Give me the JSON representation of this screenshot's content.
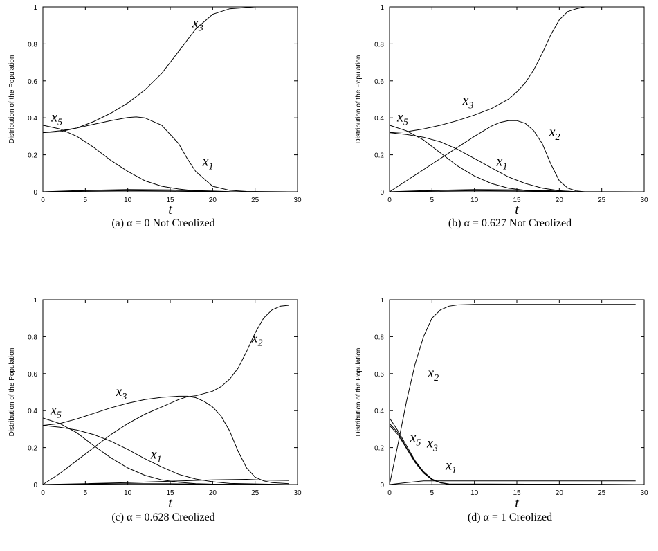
{
  "y_axis_label": "Distribution of the Population",
  "x_axis_label": "t",
  "x_ticks": [
    "0",
    "5",
    "10",
    "15",
    "20",
    "25",
    "30"
  ],
  "y_ticks": [
    "0",
    "0.2",
    "0.4",
    "0.6",
    "0.8",
    "1"
  ],
  "chart_data": [
    {
      "type": "line",
      "caption": "(a) α = 0 Not Creolized",
      "xlim": [
        0,
        30
      ],
      "ylim": [
        0,
        1
      ],
      "xlabel": "t",
      "ylabel": "Distribution of the Population",
      "grid": false,
      "series": [
        {
          "name": "x3",
          "x": [
            0,
            2,
            4,
            6,
            8,
            10,
            12,
            14,
            16,
            18,
            20,
            22,
            25,
            29
          ],
          "values": [
            0.32,
            0.325,
            0.345,
            0.38,
            0.425,
            0.48,
            0.55,
            0.64,
            0.76,
            0.88,
            0.96,
            0.99,
            1.0,
            1.0
          ]
        },
        {
          "name": "x5",
          "x": [
            0,
            2,
            4,
            6,
            8,
            10,
            12,
            14,
            16,
            18,
            20,
            22,
            29
          ],
          "values": [
            0.36,
            0.34,
            0.3,
            0.24,
            0.17,
            0.11,
            0.06,
            0.03,
            0.015,
            0.005,
            0.002,
            0.0,
            0.0
          ]
        },
        {
          "name": "x1",
          "x": [
            0,
            2,
            4,
            6,
            8,
            10,
            11,
            12,
            14,
            16,
            17,
            18,
            20,
            22,
            24,
            29
          ],
          "values": [
            0.32,
            0.33,
            0.345,
            0.365,
            0.385,
            0.402,
            0.405,
            0.4,
            0.36,
            0.26,
            0.18,
            0.11,
            0.03,
            0.008,
            0.002,
            0.0
          ]
        },
        {
          "name": "",
          "x": [
            0,
            5,
            10,
            15,
            20,
            22,
            29
          ],
          "values": [
            0.0,
            0.008,
            0.012,
            0.01,
            0.004,
            0.001,
            0.0
          ]
        },
        {
          "name": "",
          "x": [
            0,
            5,
            10,
            15,
            20,
            22,
            29
          ],
          "values": [
            0.0,
            0.004,
            0.006,
            0.005,
            0.002,
            0.0,
            0.0
          ]
        }
      ],
      "labels": [
        {
          "text": "x",
          "sub": "3",
          "x": 17.6,
          "y": 0.89
        },
        {
          "text": "x",
          "sub": "5",
          "x": 1.0,
          "y": 0.38
        },
        {
          "text": "x",
          "sub": "1",
          "x": 18.8,
          "y": 0.14
        }
      ]
    },
    {
      "type": "line",
      "caption": "(b) α = 0.627 Not Creolized",
      "xlim": [
        0,
        30
      ],
      "ylim": [
        0,
        1
      ],
      "xlabel": "t",
      "ylabel": "Distribution of the Population",
      "grid": false,
      "series": [
        {
          "name": "x3",
          "x": [
            0,
            2,
            4,
            6,
            8,
            10,
            12,
            14,
            15,
            16,
            17,
            18,
            19,
            20,
            21,
            22,
            23,
            25,
            29
          ],
          "values": [
            0.32,
            0.325,
            0.34,
            0.36,
            0.385,
            0.415,
            0.45,
            0.5,
            0.54,
            0.59,
            0.66,
            0.75,
            0.85,
            0.93,
            0.975,
            0.99,
            1.0,
            1.0,
            1.0
          ]
        },
        {
          "name": "x2",
          "x": [
            0,
            2,
            4,
            6,
            8,
            10,
            12,
            13,
            14,
            15,
            16,
            17,
            18,
            19,
            20,
            21,
            22,
            23,
            25,
            29
          ],
          "values": [
            0.0,
            0.06,
            0.12,
            0.18,
            0.24,
            0.3,
            0.355,
            0.375,
            0.385,
            0.385,
            0.37,
            0.33,
            0.26,
            0.15,
            0.06,
            0.02,
            0.005,
            0.0,
            0.0,
            0.0
          ]
        },
        {
          "name": "x5",
          "x": [
            0,
            2,
            4,
            6,
            8,
            10,
            12,
            14,
            16,
            18,
            20,
            29
          ],
          "values": [
            0.36,
            0.33,
            0.28,
            0.21,
            0.14,
            0.085,
            0.045,
            0.02,
            0.008,
            0.003,
            0.0,
            0.0
          ]
        },
        {
          "name": "x1",
          "x": [
            0,
            2,
            4,
            6,
            8,
            10,
            12,
            14,
            16,
            18,
            20,
            22,
            29
          ],
          "values": [
            0.32,
            0.31,
            0.295,
            0.27,
            0.23,
            0.18,
            0.13,
            0.08,
            0.045,
            0.02,
            0.006,
            0.0,
            0.0
          ]
        },
        {
          "name": "",
          "x": [
            0,
            5,
            10,
            15,
            20,
            22,
            29
          ],
          "values": [
            0.0,
            0.008,
            0.012,
            0.01,
            0.004,
            0.001,
            0.0
          ]
        },
        {
          "name": "",
          "x": [
            0,
            5,
            10,
            15,
            20,
            22,
            29
          ],
          "values": [
            0.0,
            0.004,
            0.006,
            0.005,
            0.002,
            0.0,
            0.0
          ]
        }
      ],
      "labels": [
        {
          "text": "x",
          "sub": "3",
          "x": 8.6,
          "y": 0.47
        },
        {
          "text": "x",
          "sub": "5",
          "x": 0.9,
          "y": 0.38
        },
        {
          "text": "x",
          "sub": "2",
          "x": 18.8,
          "y": 0.3
        },
        {
          "text": "x",
          "sub": "1",
          "x": 12.6,
          "y": 0.14
        }
      ]
    },
    {
      "type": "line",
      "caption": "(c) α = 0.628 Creolized",
      "xlim": [
        0,
        30
      ],
      "ylim": [
        0,
        1
      ],
      "xlabel": "t",
      "ylabel": "Distribution of the Population",
      "grid": false,
      "series": [
        {
          "name": "x2",
          "x": [
            0,
            2,
            4,
            6,
            8,
            10,
            12,
            14,
            16,
            17,
            18,
            20,
            21,
            22,
            23,
            24,
            25,
            26,
            27,
            28,
            29
          ],
          "values": [
            0.0,
            0.06,
            0.13,
            0.2,
            0.27,
            0.33,
            0.38,
            0.42,
            0.46,
            0.475,
            0.48,
            0.505,
            0.53,
            0.57,
            0.63,
            0.72,
            0.82,
            0.9,
            0.945,
            0.965,
            0.97
          ]
        },
        {
          "name": "x3",
          "x": [
            0,
            2,
            4,
            6,
            8,
            10,
            12,
            14,
            16,
            17,
            18,
            19,
            20,
            21,
            22,
            23,
            24,
            25,
            26,
            27,
            29
          ],
          "values": [
            0.32,
            0.33,
            0.355,
            0.385,
            0.415,
            0.44,
            0.46,
            0.472,
            0.478,
            0.478,
            0.47,
            0.45,
            0.42,
            0.37,
            0.29,
            0.18,
            0.09,
            0.04,
            0.02,
            0.01,
            0.005
          ]
        },
        {
          "name": "x5",
          "x": [
            0,
            2,
            4,
            6,
            8,
            10,
            12,
            14,
            16,
            18,
            20,
            29
          ],
          "values": [
            0.36,
            0.33,
            0.28,
            0.21,
            0.145,
            0.09,
            0.05,
            0.025,
            0.012,
            0.005,
            0.002,
            0.0
          ]
        },
        {
          "name": "x1",
          "x": [
            0,
            2,
            4,
            6,
            8,
            10,
            12,
            14,
            16,
            18,
            20,
            22,
            29
          ],
          "values": [
            0.32,
            0.31,
            0.295,
            0.27,
            0.235,
            0.19,
            0.14,
            0.095,
            0.055,
            0.03,
            0.015,
            0.006,
            0.0
          ]
        },
        {
          "name": "",
          "x": [
            0,
            5,
            10,
            15,
            20,
            24,
            26,
            29
          ],
          "values": [
            0.0,
            0.005,
            0.01,
            0.018,
            0.025,
            0.028,
            0.024,
            0.022
          ]
        },
        {
          "name": "",
          "x": [
            0,
            5,
            10,
            15,
            20,
            29
          ],
          "values": [
            0.0,
            0.003,
            0.005,
            0.004,
            0.002,
            0.0
          ]
        }
      ],
      "labels": [
        {
          "text": "x",
          "sub": "2",
          "x": 24.6,
          "y": 0.77
        },
        {
          "text": "x",
          "sub": "3",
          "x": 8.6,
          "y": 0.48
        },
        {
          "text": "x",
          "sub": "5",
          "x": 0.9,
          "y": 0.38
        },
        {
          "text": "x",
          "sub": "1",
          "x": 12.7,
          "y": 0.14
        }
      ]
    },
    {
      "type": "line",
      "caption": "(d) α = 1 Creolized",
      "xlim": [
        0,
        30
      ],
      "ylim": [
        0,
        1
      ],
      "xlabel": "t",
      "ylabel": "Distribution of the Population",
      "grid": false,
      "series": [
        {
          "name": "x2",
          "x": [
            0,
            1,
            2,
            3,
            4,
            5,
            6,
            7,
            8,
            10,
            29
          ],
          "values": [
            0.0,
            0.22,
            0.45,
            0.65,
            0.8,
            0.9,
            0.945,
            0.965,
            0.972,
            0.975,
            0.975
          ]
        },
        {
          "name": "x5",
          "x": [
            0,
            1,
            2,
            3,
            4,
            5,
            6,
            7,
            29
          ],
          "values": [
            0.36,
            0.29,
            0.21,
            0.13,
            0.07,
            0.03,
            0.01,
            0.003,
            0.0
          ]
        },
        {
          "name": "x3",
          "x": [
            0,
            1,
            2,
            3,
            4,
            5,
            6,
            7,
            29
          ],
          "values": [
            0.33,
            0.28,
            0.2,
            0.125,
            0.065,
            0.028,
            0.01,
            0.003,
            0.0
          ]
        },
        {
          "name": "x1",
          "x": [
            0,
            1,
            2,
            3,
            4,
            5,
            6,
            7,
            29
          ],
          "values": [
            0.32,
            0.27,
            0.195,
            0.12,
            0.062,
            0.026,
            0.009,
            0.002,
            0.0
          ]
        },
        {
          "name": "",
          "x": [
            0,
            2,
            4,
            6,
            8,
            10,
            29
          ],
          "values": [
            0.0,
            0.01,
            0.02,
            0.02,
            0.02,
            0.02,
            0.02
          ]
        }
      ],
      "labels": [
        {
          "text": "x",
          "sub": "2",
          "x": 4.5,
          "y": 0.58
        },
        {
          "text": "x",
          "sub": "5",
          "x": 2.4,
          "y": 0.23
        },
        {
          "text": "x",
          "sub": "3",
          "x": 4.4,
          "y": 0.2
        },
        {
          "text": "x",
          "sub": "1",
          "x": 6.6,
          "y": 0.08
        }
      ]
    }
  ]
}
